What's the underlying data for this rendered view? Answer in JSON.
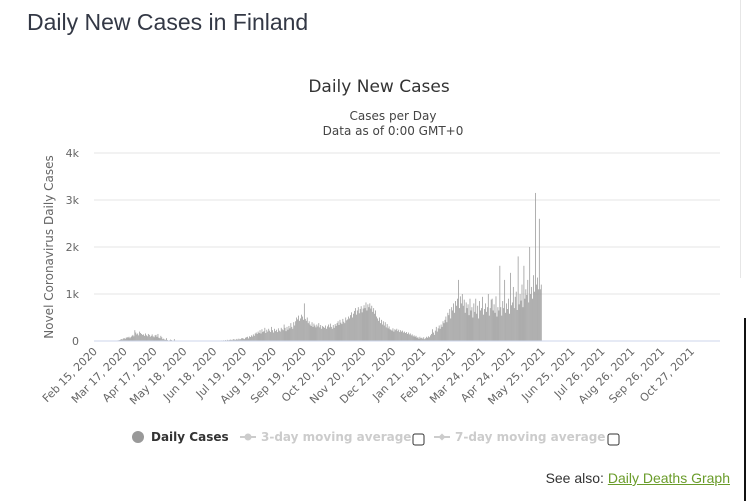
{
  "page": {
    "title": "Daily New Cases in Finland",
    "see_also_label": "See also:",
    "see_also_link": "Daily Deaths Graph"
  },
  "colors": {
    "bar": "#999999",
    "grid": "#e6e6e6",
    "axis": "#ccd6eb",
    "link": "#6a9c2a",
    "legend_inactive": "#cccccc"
  },
  "legend": {
    "items": [
      {
        "label": "Daily Cases",
        "icon": "circle-marker-icon",
        "active": true
      },
      {
        "label": "3-day moving average",
        "icon": "line-marker-icon",
        "active": false,
        "checkbox": false
      },
      {
        "label": "7-day moving average",
        "icon": "line-marker-icon",
        "active": false,
        "checkbox": false
      }
    ]
  },
  "chart_data": {
    "type": "bar",
    "title": "Daily New Cases",
    "subtitle_line1": "Cases per Day",
    "subtitle_line2": "Data as of 0:00 GMT+0",
    "ylabel": "Novel Coronavirus Daily Cases",
    "xlabel": "",
    "ylim": [
      0,
      4000
    ],
    "yticks": [
      {
        "value": 0,
        "label": "0"
      },
      {
        "value": 1000,
        "label": "1k"
      },
      {
        "value": 2000,
        "label": "2k"
      },
      {
        "value": 3000,
        "label": "3k"
      },
      {
        "value": 4000,
        "label": "4k"
      }
    ],
    "grid": true,
    "start_date": "Feb 12, 2020",
    "xticks": [
      {
        "day": 3,
        "label": "Feb 15, 2020"
      },
      {
        "day": 34,
        "label": "Mar 17, 2020"
      },
      {
        "day": 65,
        "label": "Apr 17, 2020"
      },
      {
        "day": 96,
        "label": "May 18, 2020"
      },
      {
        "day": 127,
        "label": "Jun 18, 2020"
      },
      {
        "day": 158,
        "label": "Jul 19, 2020"
      },
      {
        "day": 189,
        "label": "Aug 19, 2020"
      },
      {
        "day": 220,
        "label": "Sep 19, 2020"
      },
      {
        "day": 251,
        "label": "Oct 20, 2020"
      },
      {
        "day": 282,
        "label": "Nov 20, 2020"
      },
      {
        "day": 313,
        "label": "Dec 21, 2020"
      },
      {
        "day": 344,
        "label": "Jan 21, 2021"
      },
      {
        "day": 375,
        "label": "Feb 21, 2021"
      },
      {
        "day": 406,
        "label": "Mar 24, 2021"
      },
      {
        "day": 437,
        "label": "Apr 24, 2021"
      },
      {
        "day": 468,
        "label": "May 25, 2021"
      },
      {
        "day": 499,
        "label": "Jun 25, 2021"
      },
      {
        "day": 530,
        "label": "Jul 26, 2021"
      },
      {
        "day": 561,
        "label": "Aug 26, 2021"
      },
      {
        "day": 592,
        "label": "Sep 26, 2021"
      },
      {
        "day": 623,
        "label": "Oct 27, 2021"
      }
    ],
    "total_days": 650,
    "series": [
      {
        "name": "Daily Cases",
        "values": [
          0,
          0,
          0,
          0,
          0,
          0,
          0,
          0,
          0,
          0,
          0,
          0,
          0,
          0,
          0,
          0,
          1,
          2,
          3,
          5,
          6,
          5,
          8,
          10,
          12,
          15,
          20,
          30,
          40,
          35,
          55,
          60,
          45,
          70,
          80,
          75,
          90,
          60,
          85,
          110,
          130,
          100,
          230,
          180,
          140,
          160,
          120,
          200,
          170,
          150,
          130,
          140,
          110,
          160,
          120,
          100,
          150,
          130,
          90,
          110,
          140,
          100,
          80,
          120,
          130,
          90,
          150,
          70,
          60,
          110,
          80,
          40,
          50,
          30,
          25,
          60,
          20,
          10,
          15,
          30,
          20,
          10,
          5,
          40,
          10,
          5,
          8,
          10,
          5,
          3,
          4,
          6,
          5,
          3,
          2,
          4,
          5,
          2,
          3,
          2,
          1,
          3,
          4,
          2,
          1,
          2,
          3,
          1,
          2,
          3,
          2,
          1,
          2,
          1,
          3,
          2,
          1,
          2,
          3,
          4,
          2,
          1,
          3,
          2,
          5,
          3,
          4,
          6,
          3,
          8,
          5,
          10,
          12,
          6,
          15,
          8,
          20,
          10,
          25,
          15,
          20,
          30,
          25,
          18,
          35,
          40,
          20,
          30,
          45,
          25,
          50,
          35,
          40,
          60,
          60,
          50,
          40,
          70,
          80,
          90,
          55,
          100,
          85,
          120,
          95,
          140,
          110,
          160,
          180,
          150,
          200,
          170,
          230,
          160,
          250,
          190,
          210,
          280,
          170,
          240,
          200,
          260,
          220,
          190,
          300,
          230,
          180,
          260,
          210,
          240,
          190,
          270,
          220,
          200,
          280,
          250,
          230,
          350,
          280,
          210,
          300,
          240,
          320,
          270,
          380,
          300,
          260,
          400,
          330,
          420,
          500,
          460,
          540,
          430,
          480,
          560,
          520,
          450,
          800,
          470,
          430,
          500,
          380,
          420,
          350,
          320,
          400,
          300,
          370,
          330,
          290,
          350,
          310,
          380,
          290,
          340,
          260,
          320,
          300,
          280,
          330,
          260,
          310,
          350,
          290,
          370,
          300,
          260,
          340,
          280,
          360,
          320,
          380,
          420,
          340,
          450,
          390,
          360,
          470,
          410,
          380,
          500,
          440,
          460,
          520,
          480,
          550,
          610,
          500,
          580,
          640,
          700,
          560,
          650,
          720,
          590,
          680,
          740,
          610,
          690,
          760,
          700,
          820,
          650,
          780,
          720,
          800,
          690,
          750,
          620,
          700,
          580,
          650,
          520,
          480,
          430,
          500,
          380,
          450,
          350,
          420,
          330,
          400,
          290,
          360,
          270,
          310,
          250,
          240,
          220,
          270,
          200,
          250,
          230,
          260,
          210,
          240,
          190,
          230,
          200,
          220,
          180,
          200,
          170,
          190,
          150,
          180,
          140,
          160,
          120,
          140,
          100,
          120,
          90,
          110,
          70,
          80,
          50,
          90,
          60,
          70,
          50,
          80,
          40,
          60,
          90,
          70,
          100,
          80,
          120,
          150,
          250,
          180,
          130,
          220,
          300,
          200,
          270,
          330,
          260,
          350,
          300,
          420,
          380,
          450,
          520,
          400,
          600,
          550,
          680,
          480,
          720,
          650,
          800,
          600,
          850,
          750,
          900,
          1300,
          700,
          950,
          800,
          1000,
          750,
          880,
          600,
          820,
          700,
          780,
          550,
          900,
          650,
          720,
          500,
          800,
          620,
          900,
          580,
          750,
          480,
          850,
          650,
          700,
          940,
          560,
          680,
          800,
          620,
          720,
          1000,
          540,
          700,
          880,
          900,
          650,
          780,
          600,
          950,
          520,
          720,
          650,
          1600,
          720,
          540,
          850,
          700,
          1300,
          600,
          800,
          680,
          900,
          580,
          1450,
          760,
          820,
          1150,
          700,
          940,
          1050,
          660,
          1800,
          780,
          1000,
          860,
          1200,
          720,
          1600,
          900,
          1100,
          980,
          1300,
          820,
          2000,
          1000,
          1150,
          900,
          1400,
          1050,
          3150,
          1200,
          1350,
          1100,
          2600,
          1100,
          1200
        ]
      }
    ]
  }
}
